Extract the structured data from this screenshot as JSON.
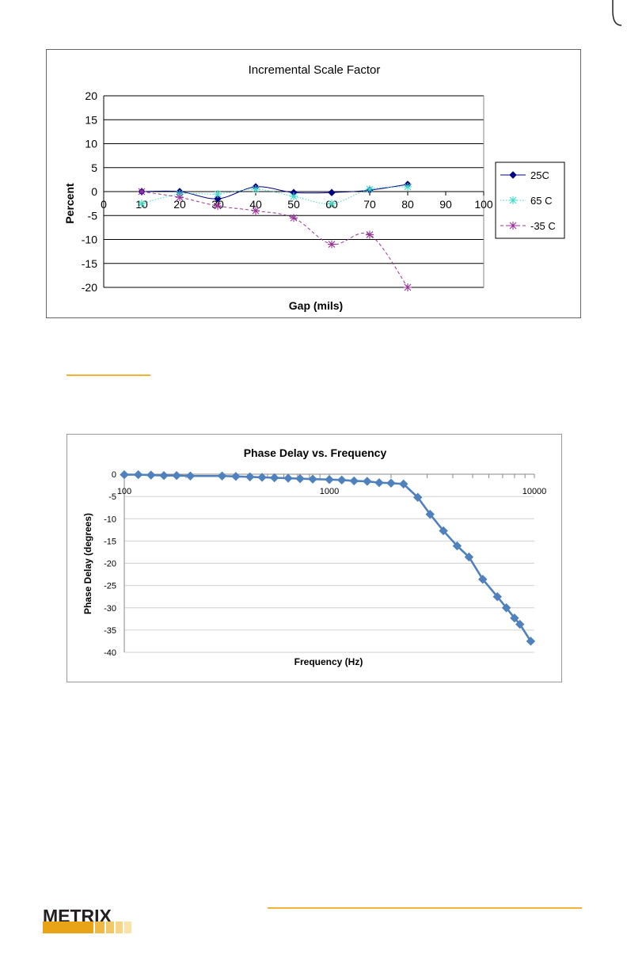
{
  "colors": {
    "accent": "#f2b233",
    "series_25c": "#000080",
    "series_65c": "#3fd9c9",
    "series_m35c": "#993399",
    "phase_line": "#4f81bd",
    "phase_marker": "#4f81bd"
  },
  "brand": {
    "logo_text": "METRIX"
  },
  "chart_data": [
    {
      "type": "line",
      "title": "Incremental Scale Factor",
      "xlabel": "Gap (mils)",
      "ylabel": "Percent",
      "xlim": [
        0,
        100
      ],
      "ylim": [
        -20,
        20
      ],
      "x_ticks": [
        "0",
        "10",
        "20",
        "30",
        "40",
        "50",
        "60",
        "70",
        "80",
        "90",
        "100"
      ],
      "y_ticks": [
        "20",
        "15",
        "10",
        "5",
        "0",
        "-5",
        "-10",
        "-15",
        "-20"
      ],
      "grid": true,
      "legend_position": "right",
      "series": [
        {
          "name": "25C",
          "x": [
            10,
            20,
            30,
            40,
            50,
            60,
            70,
            80
          ],
          "values": [
            0,
            0,
            -1.5,
            1,
            -0.2,
            -0.2,
            0.3,
            1.5
          ]
        },
        {
          "name": "65 C",
          "x": [
            10,
            20,
            30,
            40,
            50,
            60,
            70,
            80
          ],
          "values": [
            -2.5,
            -0.5,
            -0.5,
            0.5,
            -1,
            -2.5,
            0.5,
            1
          ]
        },
        {
          "name": "-35 C",
          "x": [
            10,
            20,
            30,
            40,
            50,
            60,
            70,
            80
          ],
          "values": [
            0,
            -1.2,
            -3,
            -4,
            -5.5,
            -11,
            -9,
            -20
          ]
        }
      ]
    },
    {
      "type": "line",
      "title": "Phase Delay vs. Frequency",
      "xlabel": "Frequency (Hz)",
      "ylabel": "Phase Delay (degrees)",
      "x_scale": "log",
      "xlim": [
        100,
        10000
      ],
      "ylim": [
        -40,
        0
      ],
      "x_ticks": [
        "100",
        "1000",
        "10000"
      ],
      "y_ticks": [
        "0",
        "-5",
        "-10",
        "-15",
        "-20",
        "-25",
        "-30",
        "-35",
        "-40"
      ],
      "grid": true,
      "series": [
        {
          "name": "Phase Delay",
          "x": [
            100,
            117,
            135,
            156,
            180,
            210,
            300,
            350,
            410,
            470,
            540,
            630,
            720,
            830,
            1000,
            1150,
            1320,
            1530,
            1750,
            2000,
            2300,
            2700,
            3100,
            3600,
            4200,
            4800,
            5600,
            6600,
            7300,
            8000,
            8500,
            9600
          ],
          "values": [
            -0.1,
            -0.1,
            -0.2,
            -0.3,
            -0.3,
            -0.4,
            -0.4,
            -0.5,
            -0.6,
            -0.7,
            -0.8,
            -0.9,
            -1.0,
            -1.1,
            -1.2,
            -1.3,
            -1.5,
            -1.6,
            -1.9,
            -2.0,
            -2.2,
            -5.2,
            -9.0,
            -12.7,
            -16.1,
            -18.6,
            -23.6,
            -27.5,
            -30.0,
            -32.3,
            -33.7,
            -37.5
          ]
        }
      ]
    }
  ]
}
